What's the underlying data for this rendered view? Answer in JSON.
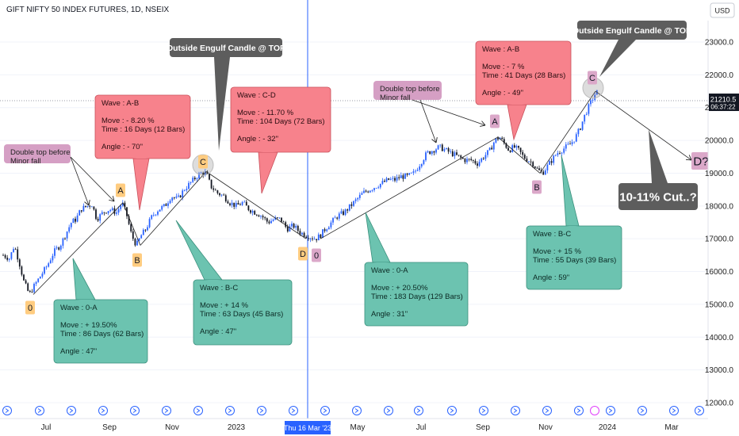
{
  "chart_data": {
    "type": "candlestick",
    "title": "GIFT NIFTY 50 INDEX FUTURES, 1D, NSEIX",
    "currency": "USD",
    "price_axis": {
      "range": [
        11900,
        24100
      ],
      "ticks": [
        12000,
        13000,
        14000,
        15000,
        16000,
        17000,
        18000,
        19000,
        20000,
        21000,
        22000,
        23000
      ]
    },
    "time_axis": {
      "labels": [
        {
          "t": 54,
          "label": "Jul"
        },
        {
          "t": 134,
          "label": "Sep"
        },
        {
          "t": 213,
          "label": "Nov"
        },
        {
          "t": 294,
          "label": "2023"
        },
        {
          "t": 447,
          "label": "May"
        },
        {
          "t": 527,
          "label": "Jul"
        },
        {
          "t": 605,
          "label": "Sep"
        },
        {
          "t": 684,
          "label": "Nov"
        },
        {
          "t": 762,
          "label": "2024"
        },
        {
          "t": 843,
          "label": "Mar"
        }
      ],
      "crosshair_label": "Thu 16 Mar '23"
    },
    "last_price": {
      "value": "21210.5",
      "countdown": "06:37:22"
    },
    "price_path": [
      [
        0,
        16500
      ],
      [
        8,
        16400
      ],
      [
        14,
        16800
      ],
      [
        20,
        16300
      ],
      [
        26,
        15700
      ],
      [
        33,
        15300
      ],
      [
        40,
        15600
      ],
      [
        48,
        15900
      ],
      [
        56,
        16200
      ],
      [
        64,
        16600
      ],
      [
        72,
        16800
      ],
      [
        80,
        17200
      ],
      [
        86,
        17500
      ],
      [
        92,
        17600
      ],
      [
        98,
        17900
      ],
      [
        106,
        18000
      ],
      [
        112,
        18050
      ],
      [
        118,
        17600
      ],
      [
        126,
        17800
      ],
      [
        134,
        17900
      ],
      [
        143,
        17800
      ],
      [
        150,
        18100
      ],
      [
        156,
        17700
      ],
      [
        162,
        17100
      ],
      [
        168,
        16800
      ],
      [
        174,
        17100
      ],
      [
        180,
        17300
      ],
      [
        188,
        17700
      ],
      [
        196,
        17900
      ],
      [
        204,
        18000
      ],
      [
        212,
        18300
      ],
      [
        220,
        18200
      ],
      [
        228,
        18500
      ],
      [
        236,
        18700
      ],
      [
        244,
        18900
      ],
      [
        250,
        19000
      ],
      [
        256,
        19000
      ],
      [
        262,
        18600
      ],
      [
        270,
        18400
      ],
      [
        278,
        18300
      ],
      [
        286,
        18100
      ],
      [
        294,
        18000
      ],
      [
        302,
        18100
      ],
      [
        310,
        17900
      ],
      [
        318,
        17800
      ],
      [
        326,
        17700
      ],
      [
        334,
        17500
      ],
      [
        342,
        17600
      ],
      [
        350,
        17600
      ],
      [
        358,
        17300
      ],
      [
        366,
        17400
      ],
      [
        374,
        17200
      ],
      [
        382,
        17100
      ],
      [
        388,
        17050
      ],
      [
        394,
        17000
      ],
      [
        400,
        17100
      ],
      [
        406,
        17300
      ],
      [
        414,
        17500
      ],
      [
        422,
        17700
      ],
      [
        430,
        17800
      ],
      [
        438,
        18000
      ],
      [
        446,
        18200
      ],
      [
        454,
        18400
      ],
      [
        462,
        18500
      ],
      [
        470,
        18600
      ],
      [
        478,
        18700
      ],
      [
        486,
        18800
      ],
      [
        494,
        18800
      ],
      [
        502,
        18900
      ],
      [
        510,
        18900
      ],
      [
        518,
        19000
      ],
      [
        526,
        19300
      ],
      [
        534,
        19600
      ],
      [
        542,
        19700
      ],
      [
        550,
        19800
      ],
      [
        558,
        19700
      ],
      [
        566,
        19600
      ],
      [
        574,
        19500
      ],
      [
        582,
        19400
      ],
      [
        590,
        19400
      ],
      [
        598,
        19300
      ],
      [
        606,
        19500
      ],
      [
        614,
        19700
      ],
      [
        620,
        20000
      ],
      [
        626,
        20100
      ],
      [
        632,
        19900
      ],
      [
        638,
        19700
      ],
      [
        644,
        19800
      ],
      [
        650,
        19700
      ],
      [
        656,
        19500
      ],
      [
        662,
        19400
      ],
      [
        668,
        19300
      ],
      [
        674,
        19100
      ],
      [
        680,
        19000
      ],
      [
        686,
        19200
      ],
      [
        692,
        19400
      ],
      [
        698,
        19600
      ],
      [
        704,
        19700
      ],
      [
        710,
        19800
      ],
      [
        716,
        19900
      ],
      [
        722,
        20100
      ],
      [
        728,
        20400
      ],
      [
        734,
        20800
      ],
      [
        740,
        21100
      ],
      [
        746,
        21400
      ],
      [
        750,
        21500
      ]
    ],
    "waves": [
      {
        "label": "0",
        "t": 38,
        "price": 15300,
        "style": "orange"
      },
      {
        "label": "A",
        "t": 151,
        "price": 18100,
        "style": "orange"
      },
      {
        "label": "B",
        "t": 173,
        "price": 16800,
        "style": "orange"
      },
      {
        "label": "C",
        "t": 256,
        "price": 19050,
        "style": "orange"
      },
      {
        "label": "D",
        "t": 382,
        "price": 17000,
        "style": "orange"
      },
      {
        "label": "0",
        "t": 400,
        "price": 17000,
        "style": "pink"
      },
      {
        "label": "A",
        "t": 624,
        "price": 20100,
        "style": "pink"
      },
      {
        "label": "B",
        "t": 677,
        "price": 19000,
        "style": "pink"
      },
      {
        "label": "C",
        "t": 747,
        "price": 21500,
        "style": "pink"
      },
      {
        "label": "D?",
        "t": 884,
        "price": 19200,
        "style": "pink"
      }
    ],
    "annotations": [
      {
        "style": "green",
        "lines": [
          "Wave : 0-A",
          "",
          "Move : + 19.50%",
          "Time : 86 Days (62 Bars)",
          "",
          "Angle : 47\""
        ]
      },
      {
        "style": "red",
        "lines": [
          "Wave : A-B",
          "",
          "Move : - 8.20 %",
          "Time : 16 Days (12 Bars)",
          "",
          "Angle : - 70\""
        ]
      },
      {
        "style": "green",
        "lines": [
          "Wave : B-C",
          "",
          "Move : + 14 %",
          "Time : 63 Days (45 Bars)",
          "",
          "Angle : 47\""
        ]
      },
      {
        "style": "red",
        "lines": [
          "Wave : C-D",
          "",
          "Move : - 11.70 %",
          "Time : 104 Days (72 Bars)",
          "",
          "Angle : - 32\""
        ]
      },
      {
        "style": "green",
        "lines": [
          "Wave : 0-A",
          "",
          "Move : + 20.50%",
          "Time : 183 Days (129 Bars)",
          "",
          "Angle : 31\""
        ]
      },
      {
        "style": "red",
        "lines": [
          "Wave : A-B",
          "",
          "Move : - 7 %",
          "Time : 41 Days (28 Bars)",
          "",
          "Angle : - 49\""
        ]
      },
      {
        "style": "green",
        "lines": [
          "Wave : B-C",
          "",
          "Move : + 15 %",
          "Time : 55 Days (39 Bars)",
          "",
          "Angle : 59\""
        ]
      },
      {
        "style": "pinklabel",
        "lines": [
          "Double top before",
          "Minor fall"
        ]
      },
      {
        "style": "pinklabel",
        "lines": [
          "Double top before",
          "Minor fall"
        ]
      },
      {
        "style": "dark",
        "lines": [
          "Outside Engulf Candle @ TOP"
        ]
      },
      {
        "style": "dark",
        "lines": [
          "Outside Engulf Candle @ TOP"
        ]
      },
      {
        "style": "darkbig",
        "lines": [
          "10-11% Cut..?"
        ]
      }
    ],
    "colors": {
      "up": "#2962ff",
      "down": "#131722",
      "crosshair": "#2962ff",
      "green_box": "#6cc3b0",
      "red_box": "#f7828c",
      "pink_box": "#d59fc4",
      "dark_box": "#5d5d5d",
      "orange_label": "#ffcc80",
      "pink_label": "#dba8c9"
    }
  }
}
